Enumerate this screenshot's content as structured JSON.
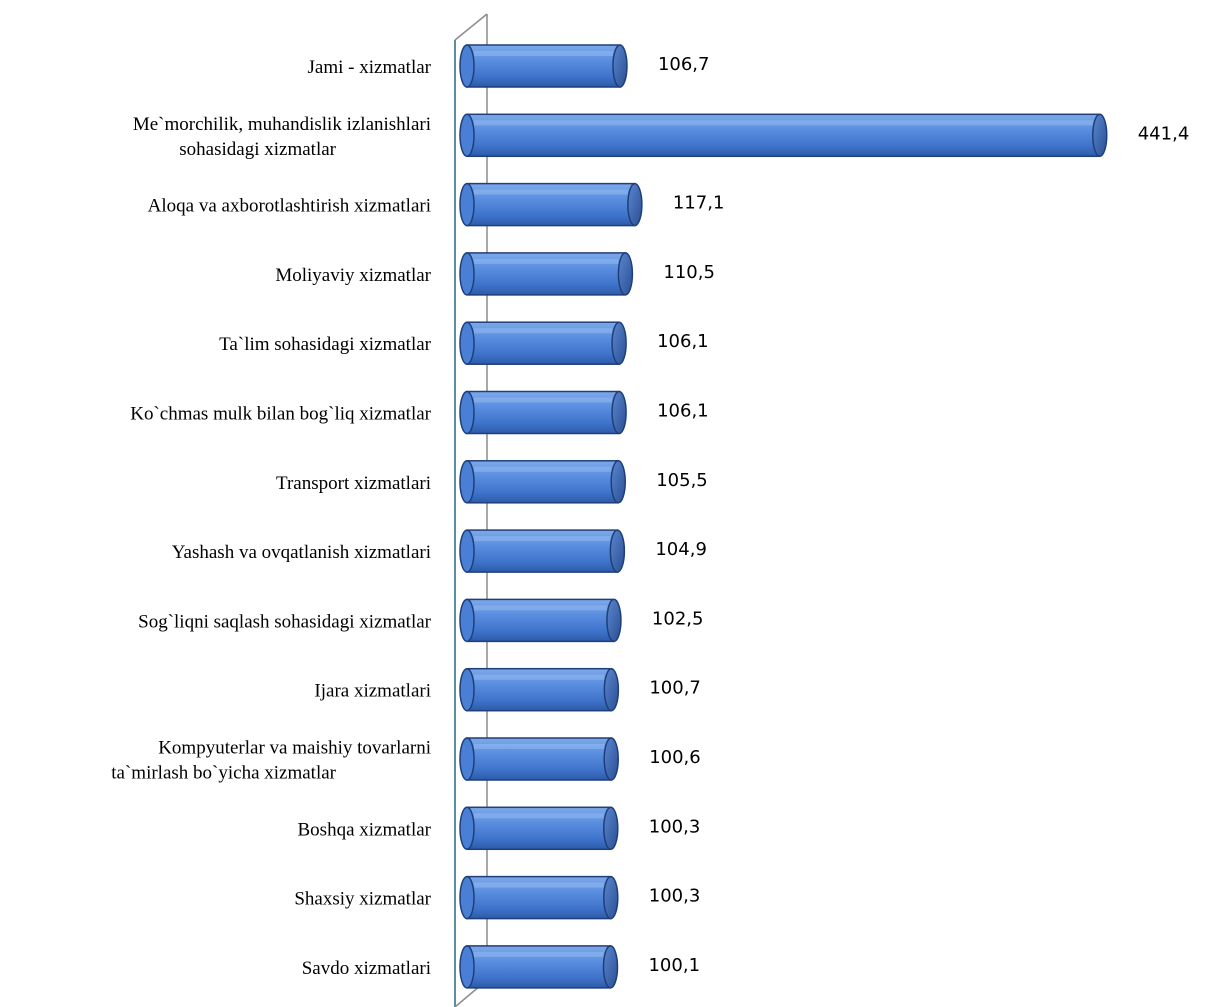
{
  "chart_data": {
    "type": "bar",
    "orientation": "horizontal",
    "style": "3d-cylinder",
    "bar_color": "#4a7fd6",
    "bar_dark": "#1f3f78",
    "bar_light": "#7ea9ea",
    "axis_color": "#8c8c8c",
    "categories": [
      "Jami - xizmatlar",
      "Me`morchilik, muhandislik izlanishlari sohasidagi xizmatlar",
      "Aloqa va axborotlashtirish xizmatlari",
      "Moliyaviy xizmatlar",
      "Ta`lim sohasidagi xizmatlar",
      "Ko`chmas mulk bilan bog`liq xizmatlar",
      "Transport xizmatlari",
      "Yashash va ovqatlanish xizmatlari",
      "Sog`liqni saqlash sohasidagi xizmatlar",
      "Ijara xizmatlari",
      "Kompyuterlar va maishiy tovarlarni ta`mirlash bo`yicha xizmatlar",
      "Boshqa xizmatlar",
      "Shaxsiy xizmatlar",
      "Savdo xizmatlari"
    ],
    "category_lines": [
      [
        "Jami - xizmatlar"
      ],
      [
        "Me`morchilik, muhandislik izlanishlari",
        "sohasidagi xizmatlar"
      ],
      [
        "Aloqa va axborotlashtirish xizmatlari"
      ],
      [
        "Moliyaviy xizmatlar"
      ],
      [
        "Ta`lim sohasidagi xizmatlar"
      ],
      [
        "Ko`chmas mulk bilan bog`liq xizmatlar"
      ],
      [
        "Transport xizmatlari"
      ],
      [
        "Yashash va ovqatlanish xizmatlari"
      ],
      [
        "Sog`liqni saqlash sohasidagi xizmatlar"
      ],
      [
        "Ijara xizmatlari"
      ],
      [
        "Kompyuterlar va maishiy tovarlarni",
        "ta`mirlash bo`yicha xizmatlar"
      ],
      [
        "Boshqa xizmatlar"
      ],
      [
        "Shaxsiy xizmatlar"
      ],
      [
        "Savdo xizmatlari"
      ]
    ],
    "values": [
      106.7,
      441.4,
      117.1,
      110.5,
      106.1,
      106.1,
      105.5,
      104.9,
      102.5,
      100.7,
      100.6,
      100.3,
      100.3,
      100.1
    ],
    "value_labels": [
      "106,7",
      "441,4",
      "117,1",
      "110,5",
      "106,1",
      "106,1",
      "105,5",
      "104,9",
      "102,5",
      "100,7",
      "100,6",
      "100,3",
      "100,3",
      "100,1"
    ],
    "title": "",
    "xlabel": "",
    "ylabel": "",
    "xlim": [
      0,
      441.4
    ],
    "grid": false,
    "legend": "none"
  }
}
